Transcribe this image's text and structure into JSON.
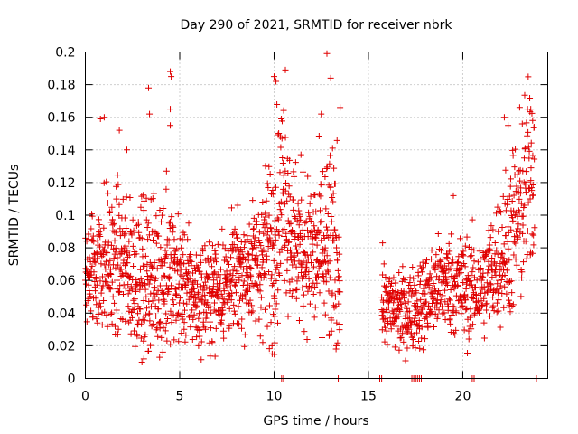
{
  "chart_data": {
    "type": "scatter",
    "title": "Day 290 of 2021, SRMTID for receiver nbrk",
    "xlabel": "GPS time / hours",
    "ylabel": "SRMTID / TECUs",
    "xlim": [
      0,
      24.5
    ],
    "ylim": [
      0,
      0.2
    ],
    "x_ticks": [
      0,
      5,
      10,
      15,
      20
    ],
    "x_tick_labels": [
      "0",
      "5",
      "10",
      "15",
      "20"
    ],
    "y_ticks": [
      0,
      0.02,
      0.04,
      0.06,
      0.08,
      0.1,
      0.12,
      0.14,
      0.16,
      0.18,
      0.2
    ],
    "y_tick_labels": [
      "0",
      "0.02",
      "0.04",
      "0.06",
      "0.08",
      "0.1",
      "0.12",
      "0.14",
      "0.16",
      "0.18",
      "0.2"
    ],
    "grid": true,
    "marker": "+",
    "color": "#e00000",
    "series": [
      {
        "name": "SRMTID",
        "profile": [
          {
            "t": 0.0,
            "c": 0.065,
            "s": 0.017
          },
          {
            "t": 1.0,
            "c": 0.072,
            "s": 0.022
          },
          {
            "t": 2.0,
            "c": 0.07,
            "s": 0.022
          },
          {
            "t": 3.0,
            "c": 0.062,
            "s": 0.022
          },
          {
            "t": 4.0,
            "c": 0.065,
            "s": 0.025
          },
          {
            "t": 5.0,
            "c": 0.06,
            "s": 0.018
          },
          {
            "t": 6.0,
            "c": 0.05,
            "s": 0.015
          },
          {
            "t": 7.0,
            "c": 0.055,
            "s": 0.016
          },
          {
            "t": 8.0,
            "c": 0.063,
            "s": 0.016
          },
          {
            "t": 9.0,
            "c": 0.07,
            "s": 0.018
          },
          {
            "t": 10.0,
            "c": 0.085,
            "s": 0.03
          },
          {
            "t": 10.5,
            "c": 0.12,
            "s": 0.03
          },
          {
            "t": 11.0,
            "c": 0.085,
            "s": 0.025
          },
          {
            "t": 12.0,
            "c": 0.075,
            "s": 0.022
          },
          {
            "t": 13.0,
            "c": 0.075,
            "s": 0.035
          },
          {
            "t": 13.5,
            "c": 0.07,
            "s": 0.025
          }
        ],
        "profile_b": [
          {
            "t": 15.7,
            "c": 0.045,
            "s": 0.012
          },
          {
            "t": 17.0,
            "c": 0.04,
            "s": 0.012
          },
          {
            "t": 18.0,
            "c": 0.048,
            "s": 0.014
          },
          {
            "t": 19.0,
            "c": 0.06,
            "s": 0.015
          },
          {
            "t": 20.0,
            "c": 0.055,
            "s": 0.016
          },
          {
            "t": 21.0,
            "c": 0.055,
            "s": 0.015
          },
          {
            "t": 22.0,
            "c": 0.075,
            "s": 0.02
          },
          {
            "t": 23.0,
            "c": 0.1,
            "s": 0.03
          },
          {
            "t": 23.7,
            "c": 0.13,
            "s": 0.03
          }
        ],
        "extra_points": [
          [
            0.8,
            0.159
          ],
          [
            1.0,
            0.16
          ],
          [
            1.8,
            0.152
          ],
          [
            2.2,
            0.14
          ],
          [
            3.35,
            0.178
          ],
          [
            3.4,
            0.162
          ],
          [
            4.5,
            0.188
          ],
          [
            4.55,
            0.185
          ],
          [
            4.5,
            0.165
          ],
          [
            4.5,
            0.155
          ],
          [
            10.0,
            0.185
          ],
          [
            10.1,
            0.182
          ],
          [
            10.6,
            0.189
          ],
          [
            12.8,
            0.199
          ],
          [
            13.0,
            0.184
          ],
          [
            12.5,
            0.162
          ],
          [
            13.5,
            0.166
          ],
          [
            22.2,
            0.16
          ],
          [
            22.4,
            0.155
          ],
          [
            23.6,
            0.165
          ],
          [
            23.7,
            0.158
          ],
          [
            4.3,
            0.127
          ],
          [
            3.0,
            0.01
          ],
          [
            3.1,
            0.012
          ],
          [
            9.4,
            0.022
          ],
          [
            13.3,
            0.02
          ],
          [
            15.75,
            0.083
          ],
          [
            19.5,
            0.112
          ],
          [
            9.9,
            0.015
          ],
          [
            6.0,
            0.02
          ]
        ],
        "zero_points": [
          10.4,
          10.5,
          15.6,
          15.7,
          17.3,
          17.4,
          17.5,
          17.6,
          17.7,
          17.8,
          20.5,
          20.6,
          13.4,
          23.9
        ]
      }
    ]
  }
}
